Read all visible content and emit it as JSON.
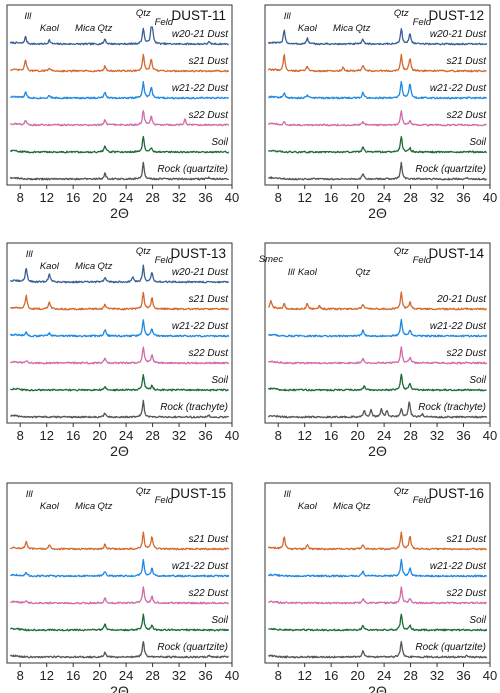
{
  "chart_data": [
    {
      "type": "line",
      "title": "DUST-11",
      "xlabel": "2Θ",
      "xlim": [
        6,
        40
      ],
      "xticks": [
        8,
        12,
        16,
        20,
        24,
        28,
        32,
        36,
        40
      ],
      "mineral_labels": [
        {
          "text": "Ill",
          "x": 8.7
        },
        {
          "text": "Kaol",
          "x": 12.4
        },
        {
          "text": "Mica",
          "x": 17.8
        },
        {
          "text": "Qtz",
          "x": 20.8
        },
        {
          "text": "Qtz",
          "x": 26.6
        },
        {
          "text": "Feld",
          "x": 28.0
        }
      ],
      "series": [
        {
          "name": "w20-21 Dust",
          "color": "#3a5f96",
          "peaks": [
            [
              8.8,
              0.45
            ],
            [
              12.4,
              0.25
            ],
            [
              20.8,
              0.32
            ],
            [
              26.6,
              1.0
            ],
            [
              27.8,
              0.9
            ],
            [
              28.0,
              0.6
            ],
            [
              36.5,
              0.12
            ]
          ]
        },
        {
          "name": "s21 Dust",
          "color": "#d4692e",
          "peaks": [
            [
              8.8,
              0.7
            ],
            [
              12.4,
              0.22
            ],
            [
              20.8,
              0.3
            ],
            [
              26.6,
              1.0
            ],
            [
              27.8,
              0.75
            ]
          ]
        },
        {
          "name": "w21-22 Dust",
          "color": "#1e88e5",
          "peaks": [
            [
              8.8,
              0.35
            ],
            [
              12.4,
              0.18
            ],
            [
              20.8,
              0.35
            ],
            [
              26.6,
              1.0
            ],
            [
              27.8,
              0.7
            ]
          ]
        },
        {
          "name": "s22 Dust",
          "color": "#d06ba8",
          "peaks": [
            [
              8.8,
              0.3
            ],
            [
              20.8,
              0.3
            ],
            [
              26.6,
              0.9
            ],
            [
              27.8,
              0.55
            ],
            [
              32.9,
              0.35
            ]
          ]
        },
        {
          "name": "Soil",
          "color": "#1e6b35",
          "peaks": [
            [
              20.8,
              0.4
            ],
            [
              26.6,
              1.0
            ],
            [
              27.8,
              0.25
            ]
          ]
        },
        {
          "name": "Rock (quartzite)",
          "color": "#555555",
          "peaks": [
            [
              20.8,
              0.35
            ],
            [
              26.6,
              1.0
            ],
            [
              36.5,
              0.1
            ]
          ]
        }
      ]
    },
    {
      "type": "line",
      "title": "DUST-12",
      "xlabel": "2Θ",
      "xlim": [
        6,
        40
      ],
      "xticks": [
        8,
        12,
        16,
        20,
        24,
        28,
        32,
        36,
        40
      ],
      "mineral_labels": [
        {
          "text": "Ill",
          "x": 8.9
        },
        {
          "text": "Kaol",
          "x": 12.4
        },
        {
          "text": "Mica",
          "x": 17.8
        },
        {
          "text": "Qtz",
          "x": 20.8
        },
        {
          "text": "Qtz",
          "x": 26.6
        },
        {
          "text": "Feld",
          "x": 28.0
        }
      ],
      "series": [
        {
          "name": "w20-21 Dust",
          "color": "#3a5f96",
          "peaks": [
            [
              8.9,
              0.9
            ],
            [
              12.4,
              0.35
            ],
            [
              20.8,
              0.3
            ],
            [
              26.6,
              1.0
            ],
            [
              27.9,
              0.7
            ]
          ]
        },
        {
          "name": "s21 Dust",
          "color": "#d4692e",
          "peaks": [
            [
              8.9,
              1.0
            ],
            [
              12.4,
              0.3
            ],
            [
              17.8,
              0.25
            ],
            [
              20.8,
              0.35
            ],
            [
              26.6,
              1.0
            ],
            [
              27.9,
              0.8
            ]
          ]
        },
        {
          "name": "w21-22 Dust",
          "color": "#1e88e5",
          "peaks": [
            [
              8.9,
              0.3
            ],
            [
              12.4,
              0.2
            ],
            [
              20.8,
              0.35
            ],
            [
              26.6,
              1.0
            ],
            [
              27.9,
              0.95
            ]
          ]
        },
        {
          "name": "s22 Dust",
          "color": "#d06ba8",
          "peaks": [
            [
              8.9,
              0.2
            ],
            [
              20.8,
              0.25
            ],
            [
              26.6,
              0.9
            ],
            [
              27.9,
              0.3
            ]
          ]
        },
        {
          "name": "Soil",
          "color": "#1e6b35",
          "peaks": [
            [
              20.8,
              0.3
            ],
            [
              26.6,
              1.0
            ],
            [
              27.9,
              0.25
            ]
          ]
        },
        {
          "name": "Rock (quartzite)",
          "color": "#555555",
          "peaks": [
            [
              20.8,
              0.35
            ],
            [
              26.6,
              1.0
            ],
            [
              36.5,
              0.1
            ]
          ]
        }
      ]
    },
    {
      "type": "line",
      "title": "DUST-13",
      "xlabel": "2Θ",
      "xlim": [
        6,
        40
      ],
      "xticks": [
        8,
        12,
        16,
        20,
        24,
        28,
        32,
        36,
        40
      ],
      "mineral_labels": [
        {
          "text": "Ill",
          "x": 8.9
        },
        {
          "text": "Kaol",
          "x": 12.4
        },
        {
          "text": "Mica",
          "x": 17.8
        },
        {
          "text": "Qtz",
          "x": 20.8
        },
        {
          "text": "Qtz",
          "x": 26.6
        },
        {
          "text": "Feld",
          "x": 28.0
        }
      ],
      "series": [
        {
          "name": "w20-21 Dust",
          "color": "#3a5f96",
          "peaks": [
            [
              8.9,
              0.9
            ],
            [
              12.4,
              0.55
            ],
            [
              20.8,
              0.3
            ],
            [
              25.0,
              0.3
            ],
            [
              26.6,
              1.0
            ],
            [
              27.9,
              0.6
            ]
          ]
        },
        {
          "name": "s21 Dust",
          "color": "#d4692e",
          "peaks": [
            [
              8.9,
              0.85
            ],
            [
              12.4,
              0.45
            ],
            [
              20.8,
              0.3
            ],
            [
              26.6,
              1.0
            ],
            [
              27.9,
              0.7
            ]
          ]
        },
        {
          "name": "w21-22 Dust",
          "color": "#1e88e5",
          "peaks": [
            [
              8.9,
              0.25
            ],
            [
              12.4,
              0.2
            ],
            [
              20.8,
              0.4
            ],
            [
              26.6,
              1.0
            ],
            [
              27.9,
              0.45
            ]
          ]
        },
        {
          "name": "s22 Dust",
          "color": "#d06ba8",
          "peaks": [
            [
              8.9,
              0.15
            ],
            [
              20.8,
              0.3
            ],
            [
              26.6,
              1.0
            ],
            [
              27.9,
              0.5
            ]
          ]
        },
        {
          "name": "Soil",
          "color": "#1e6b35",
          "peaks": [
            [
              20.8,
              0.25
            ],
            [
              26.6,
              1.0
            ],
            [
              27.9,
              0.3
            ]
          ]
        },
        {
          "name": "Rock (trachyte)",
          "color": "#555555",
          "peaks": [
            [
              20.8,
              0.25
            ],
            [
              26.6,
              1.0
            ],
            [
              36.5,
              0.1
            ]
          ]
        }
      ]
    },
    {
      "type": "line",
      "title": "DUST-14",
      "xlabel": "2Θ",
      "xlim": [
        6,
        40
      ],
      "xticks": [
        8,
        12,
        16,
        20,
        24,
        28,
        32,
        36,
        40
      ],
      "mineral_labels": [
        {
          "text": "Smec",
          "x": 6.9
        },
        {
          "text": "Ill",
          "x": 9.5
        },
        {
          "text": "Kaol",
          "x": 12.4
        },
        {
          "text": "Qtz",
          "x": 20.8
        },
        {
          "text": "Qtz",
          "x": 26.6
        },
        {
          "text": "Feld",
          "x": 28.0
        }
      ],
      "series": [
        {
          "name": "20-21 Dust",
          "color": "#d4692e",
          "peaks": [
            [
              6.9,
              0.4
            ],
            [
              8.9,
              0.3
            ],
            [
              12.4,
              0.35
            ],
            [
              14.2,
              0.2
            ],
            [
              20.8,
              0.3
            ],
            [
              26.6,
              1.0
            ],
            [
              27.9,
              0.45
            ]
          ]
        },
        {
          "name": "w21-22 Dust",
          "color": "#1e88e5",
          "peaks": [
            [
              20.8,
              0.35
            ],
            [
              26.6,
              1.0
            ],
            [
              27.9,
              0.4
            ]
          ]
        },
        {
          "name": "s22 Dust",
          "color": "#d06ba8",
          "peaks": [
            [
              20.8,
              0.3
            ],
            [
              26.6,
              1.0
            ],
            [
              27.9,
              0.35
            ]
          ]
        },
        {
          "name": "Soil",
          "color": "#1e6b35",
          "peaks": [
            [
              21.0,
              0.25
            ],
            [
              26.6,
              1.0
            ],
            [
              27.9,
              0.45
            ]
          ]
        },
        {
          "name": "Rock (trachyte)",
          "color": "#555555",
          "peaks": [
            [
              21.0,
              0.4
            ],
            [
              22.0,
              0.45
            ],
            [
              23.6,
              0.5
            ],
            [
              24.4,
              0.4
            ],
            [
              26.6,
              0.55
            ],
            [
              27.8,
              1.0
            ],
            [
              29.8,
              0.2
            ]
          ]
        }
      ]
    },
    {
      "type": "line",
      "title": "DUST-15",
      "xlabel": "2Θ",
      "xlim": [
        6,
        40
      ],
      "xticks": [
        8,
        12,
        16,
        20,
        24,
        28,
        32,
        36,
        40
      ],
      "mineral_labels": [
        {
          "text": "Ill",
          "x": 8.9
        },
        {
          "text": "Kaol",
          "x": 12.4
        },
        {
          "text": "Mica",
          "x": 17.8
        },
        {
          "text": "Qtz",
          "x": 20.8
        },
        {
          "text": "Qtz",
          "x": 26.6
        },
        {
          "text": "Feld",
          "x": 28.0
        }
      ],
      "series": [
        {
          "name": "s21 Dust",
          "color": "#d4692e",
          "peaks": [
            [
              8.9,
              0.45
            ],
            [
              12.4,
              0.25
            ],
            [
              20.8,
              0.3
            ],
            [
              26.6,
              1.0
            ],
            [
              27.9,
              0.8
            ]
          ]
        },
        {
          "name": "w21-22 Dust",
          "color": "#1e88e5",
          "peaks": [
            [
              8.9,
              0.2
            ],
            [
              20.8,
              0.3
            ],
            [
              26.6,
              1.0
            ],
            [
              27.9,
              0.5
            ]
          ]
        },
        {
          "name": "s22 Dust",
          "color": "#d06ba8",
          "peaks": [
            [
              8.9,
              0.15
            ],
            [
              20.8,
              0.3
            ],
            [
              26.6,
              1.0
            ],
            [
              27.9,
              0.4
            ]
          ]
        },
        {
          "name": "Soil",
          "color": "#1e6b35",
          "peaks": [
            [
              20.8,
              0.4
            ],
            [
              26.6,
              1.0
            ],
            [
              27.9,
              0.3
            ]
          ]
        },
        {
          "name": "Rock (quartzite)",
          "color": "#555555",
          "peaks": [
            [
              20.8,
              0.3
            ],
            [
              26.6,
              1.0
            ],
            [
              36.5,
              0.1
            ]
          ]
        }
      ]
    },
    {
      "type": "line",
      "title": "DUST-16",
      "xlabel": "2Θ",
      "xlim": [
        6,
        40
      ],
      "xticks": [
        8,
        12,
        16,
        20,
        24,
        28,
        32,
        36,
        40
      ],
      "mineral_labels": [
        {
          "text": "Ill",
          "x": 8.9
        },
        {
          "text": "Kaol",
          "x": 12.4
        },
        {
          "text": "Mica",
          "x": 17.8
        },
        {
          "text": "Qtz",
          "x": 20.8
        },
        {
          "text": "Qtz",
          "x": 26.6
        },
        {
          "text": "Feld",
          "x": 28.0
        }
      ],
      "series": [
        {
          "name": "s21 Dust",
          "color": "#d4692e",
          "peaks": [
            [
              8.9,
              0.75
            ],
            [
              12.4,
              0.25
            ],
            [
              20.8,
              0.3
            ],
            [
              26.6,
              1.0
            ],
            [
              27.9,
              0.85
            ]
          ]
        },
        {
          "name": "w21-22 Dust",
          "color": "#1e88e5",
          "peaks": [
            [
              20.8,
              0.3
            ],
            [
              26.6,
              1.0
            ],
            [
              27.9,
              0.5
            ]
          ]
        },
        {
          "name": "s22 Dust",
          "color": "#d06ba8",
          "peaks": [
            [
              20.8,
              0.3
            ],
            [
              26.6,
              1.0
            ],
            [
              27.9,
              0.3
            ]
          ]
        },
        {
          "name": "Soil",
          "color": "#1e6b35",
          "peaks": [
            [
              20.8,
              0.3
            ],
            [
              26.6,
              1.0
            ],
            [
              27.9,
              0.3
            ]
          ]
        },
        {
          "name": "Rock (quartzite)",
          "color": "#555555",
          "peaks": [
            [
              20.8,
              0.35
            ],
            [
              26.6,
              1.0
            ],
            [
              36.5,
              0.1
            ]
          ]
        }
      ]
    }
  ]
}
